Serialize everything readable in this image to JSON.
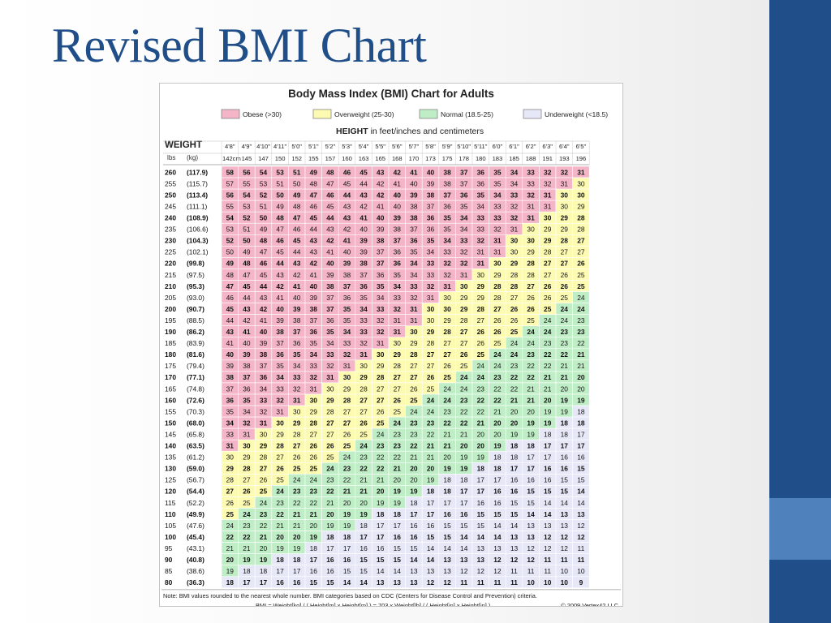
{
  "slide": {
    "title": "Revised BMI Chart"
  },
  "colors": {
    "obese": "#f5b5c8",
    "overweight": "#fdfbb1",
    "normal": "#bfeec6",
    "underweight": "#e6e8f7",
    "accent": "#1f4e89",
    "accent_light": "#4f81bd"
  },
  "chart_data": {
    "type": "table",
    "title": "Body Mass Index (BMI) Chart for Adults",
    "legend": [
      {
        "label": "Obese (>30)",
        "color": "#f5b5c8"
      },
      {
        "label": "Overweight (25-30)",
        "color": "#fdfbb1"
      },
      {
        "label": "Normal (18.5-25)",
        "color": "#bfeec6"
      },
      {
        "label": "Underweight (<18.5)",
        "color": "#e6e8f7"
      }
    ],
    "height_label_bold": "HEIGHT",
    "height_label_rest": " in feet/inches and centimeters",
    "weight_label": "WEIGHT",
    "lbs_label": "lbs",
    "kg_label": "(kg)",
    "heights_ftin": [
      "4'8\"",
      "4'9\"",
      "4'10\"",
      "4'11\"",
      "5'0\"",
      "5'1\"",
      "5'2\"",
      "5'3\"",
      "5'4\"",
      "5'5\"",
      "5'6\"",
      "5'7\"",
      "5'8\"",
      "5'9\"",
      "5'10\"",
      "5'11\"",
      "6'0\"",
      "6'1\"",
      "6'2\"",
      "6'3\"",
      "6'4\"",
      "6'5\""
    ],
    "heights_cm": [
      "142cm",
      "145",
      "147",
      "150",
      "152",
      "155",
      "157",
      "160",
      "163",
      "165",
      "168",
      "170",
      "173",
      "175",
      "178",
      "180",
      "183",
      "185",
      "188",
      "191",
      "193",
      "196"
    ],
    "rows": [
      {
        "lbs": "260",
        "kg": "(117.9)",
        "bmi": [
          58,
          56,
          54,
          53,
          51,
          49,
          48,
          46,
          45,
          43,
          42,
          41,
          40,
          38,
          37,
          36,
          35,
          34,
          33,
          32,
          32,
          31
        ]
      },
      {
        "lbs": "255",
        "kg": "(115.7)",
        "bmi": [
          57,
          55,
          53,
          51,
          50,
          48,
          47,
          45,
          44,
          42,
          41,
          40,
          39,
          38,
          37,
          36,
          35,
          34,
          33,
          32,
          31,
          30
        ]
      },
      {
        "lbs": "250",
        "kg": "(113.4)",
        "bmi": [
          56,
          54,
          52,
          50,
          49,
          47,
          46,
          44,
          43,
          42,
          40,
          39,
          38,
          37,
          36,
          35,
          34,
          33,
          32,
          31,
          30,
          30
        ]
      },
      {
        "lbs": "245",
        "kg": "(111.1)",
        "bmi": [
          55,
          53,
          51,
          49,
          48,
          46,
          45,
          43,
          42,
          41,
          40,
          38,
          37,
          36,
          35,
          34,
          33,
          32,
          31,
          31,
          30,
          29
        ]
      },
      {
        "lbs": "240",
        "kg": "(108.9)",
        "bmi": [
          54,
          52,
          50,
          48,
          47,
          45,
          44,
          43,
          41,
          40,
          39,
          38,
          36,
          35,
          34,
          33,
          33,
          32,
          31,
          30,
          29,
          28
        ]
      },
      {
        "lbs": "235",
        "kg": "(106.6)",
        "bmi": [
          53,
          51,
          49,
          47,
          46,
          44,
          43,
          42,
          40,
          39,
          38,
          37,
          36,
          35,
          34,
          33,
          32,
          31,
          30,
          29,
          29,
          28
        ]
      },
      {
        "lbs": "230",
        "kg": "(104.3)",
        "bmi": [
          52,
          50,
          48,
          46,
          45,
          43,
          42,
          41,
          39,
          38,
          37,
          36,
          35,
          34,
          33,
          32,
          31,
          30,
          30,
          29,
          28,
          27
        ]
      },
      {
        "lbs": "225",
        "kg": "(102.1)",
        "bmi": [
          50,
          49,
          47,
          45,
          44,
          43,
          41,
          40,
          39,
          37,
          36,
          35,
          34,
          33,
          32,
          31,
          31,
          30,
          29,
          28,
          27,
          27
        ]
      },
      {
        "lbs": "220",
        "kg": "(99.8)",
        "bmi": [
          49,
          48,
          46,
          44,
          43,
          42,
          40,
          39,
          38,
          37,
          36,
          34,
          33,
          32,
          32,
          31,
          30,
          29,
          28,
          27,
          27,
          26
        ]
      },
      {
        "lbs": "215",
        "kg": "(97.5)",
        "bmi": [
          48,
          47,
          45,
          43,
          42,
          41,
          39,
          38,
          37,
          36,
          35,
          34,
          33,
          32,
          31,
          30,
          29,
          28,
          28,
          27,
          26,
          25
        ]
      },
      {
        "lbs": "210",
        "kg": "(95.3)",
        "bmi": [
          47,
          45,
          44,
          42,
          41,
          40,
          38,
          37,
          36,
          35,
          34,
          33,
          32,
          31,
          30,
          29,
          28,
          28,
          27,
          26,
          26,
          25
        ]
      },
      {
        "lbs": "205",
        "kg": "(93.0)",
        "bmi": [
          46,
          44,
          43,
          41,
          40,
          39,
          37,
          36,
          35,
          34,
          33,
          32,
          31,
          30,
          29,
          29,
          28,
          27,
          26,
          26,
          25,
          24
        ]
      },
      {
        "lbs": "200",
        "kg": "(90.7)",
        "bmi": [
          45,
          43,
          42,
          40,
          39,
          38,
          37,
          35,
          34,
          33,
          32,
          31,
          30,
          30,
          29,
          28,
          27,
          26,
          26,
          25,
          24,
          24
        ]
      },
      {
        "lbs": "195",
        "kg": "(88.5)",
        "bmi": [
          44,
          42,
          41,
          39,
          38,
          37,
          36,
          35,
          33,
          32,
          31,
          31,
          30,
          29,
          28,
          27,
          26,
          26,
          25,
          24,
          24,
          23
        ]
      },
      {
        "lbs": "190",
        "kg": "(86.2)",
        "bmi": [
          43,
          41,
          40,
          38,
          37,
          36,
          35,
          34,
          33,
          32,
          31,
          30,
          29,
          28,
          27,
          26,
          26,
          25,
          24,
          24,
          23,
          23
        ]
      },
      {
        "lbs": "185",
        "kg": "(83.9)",
        "bmi": [
          41,
          40,
          39,
          37,
          36,
          35,
          34,
          33,
          32,
          31,
          30,
          29,
          28,
          27,
          27,
          26,
          25,
          24,
          24,
          23,
          23,
          22
        ]
      },
      {
        "lbs": "180",
        "kg": "(81.6)",
        "bmi": [
          40,
          39,
          38,
          36,
          35,
          34,
          33,
          32,
          31,
          30,
          29,
          28,
          27,
          27,
          26,
          25,
          24,
          24,
          23,
          22,
          22,
          21
        ]
      },
      {
        "lbs": "175",
        "kg": "(79.4)",
        "bmi": [
          39,
          38,
          37,
          35,
          34,
          33,
          32,
          31,
          30,
          29,
          28,
          27,
          27,
          26,
          25,
          24,
          24,
          23,
          22,
          22,
          21,
          21
        ]
      },
      {
        "lbs": "170",
        "kg": "(77.1)",
        "bmi": [
          38,
          37,
          36,
          34,
          33,
          32,
          31,
          30,
          29,
          28,
          27,
          27,
          26,
          25,
          24,
          24,
          23,
          22,
          22,
          21,
          21,
          20
        ]
      },
      {
        "lbs": "165",
        "kg": "(74.8)",
        "bmi": [
          37,
          36,
          34,
          33,
          32,
          31,
          30,
          29,
          28,
          27,
          27,
          26,
          25,
          24,
          24,
          23,
          22,
          22,
          21,
          21,
          20,
          20
        ]
      },
      {
        "lbs": "160",
        "kg": "(72.6)",
        "bmi": [
          36,
          35,
          33,
          32,
          31,
          30,
          29,
          28,
          27,
          27,
          26,
          25,
          24,
          24,
          23,
          22,
          22,
          21,
          21,
          20,
          19,
          19
        ]
      },
      {
        "lbs": "155",
        "kg": "(70.3)",
        "bmi": [
          35,
          34,
          32,
          31,
          30,
          29,
          28,
          27,
          27,
          26,
          25,
          24,
          24,
          23,
          22,
          22,
          21,
          20,
          20,
          19,
          19,
          18
        ]
      },
      {
        "lbs": "150",
        "kg": "(68.0)",
        "bmi": [
          34,
          32,
          31,
          30,
          29,
          28,
          27,
          27,
          26,
          25,
          24,
          23,
          23,
          22,
          22,
          21,
          20,
          20,
          19,
          19,
          18,
          18
        ]
      },
      {
        "lbs": "145",
        "kg": "(65.8)",
        "bmi": [
          33,
          31,
          30,
          29,
          28,
          27,
          27,
          26,
          25,
          24,
          23,
          23,
          22,
          21,
          21,
          20,
          20,
          19,
          19,
          18,
          18,
          17
        ]
      },
      {
        "lbs": "140",
        "kg": "(63.5)",
        "bmi": [
          31,
          30,
          29,
          28,
          27,
          26,
          26,
          25,
          24,
          23,
          23,
          22,
          21,
          21,
          20,
          20,
          19,
          18,
          18,
          17,
          17,
          17
        ]
      },
      {
        "lbs": "135",
        "kg": "(61.2)",
        "bmi": [
          30,
          29,
          28,
          27,
          26,
          26,
          25,
          24,
          23,
          22,
          22,
          21,
          21,
          20,
          19,
          19,
          18,
          18,
          17,
          17,
          16,
          16
        ]
      },
      {
        "lbs": "130",
        "kg": "(59.0)",
        "bmi": [
          29,
          28,
          27,
          26,
          25,
          25,
          24,
          23,
          22,
          22,
          21,
          20,
          20,
          19,
          19,
          18,
          18,
          17,
          17,
          16,
          16,
          15
        ]
      },
      {
        "lbs": "125",
        "kg": "(56.7)",
        "bmi": [
          28,
          27,
          26,
          25,
          24,
          24,
          23,
          22,
          21,
          21,
          20,
          20,
          19,
          18,
          18,
          17,
          17,
          16,
          16,
          16,
          15,
          15
        ]
      },
      {
        "lbs": "120",
        "kg": "(54.4)",
        "bmi": [
          27,
          26,
          25,
          24,
          23,
          23,
          22,
          21,
          21,
          20,
          19,
          19,
          18,
          18,
          17,
          17,
          16,
          16,
          15,
          15,
          15,
          14
        ]
      },
      {
        "lbs": "115",
        "kg": "(52.2)",
        "bmi": [
          26,
          25,
          24,
          23,
          22,
          22,
          21,
          20,
          20,
          19,
          19,
          18,
          17,
          17,
          17,
          16,
          16,
          15,
          15,
          14,
          14,
          14
        ]
      },
      {
        "lbs": "110",
        "kg": "(49.9)",
        "bmi": [
          25,
          24,
          23,
          22,
          21,
          21,
          20,
          19,
          19,
          18,
          18,
          17,
          17,
          16,
          16,
          15,
          15,
          15,
          14,
          14,
          13,
          13
        ]
      },
      {
        "lbs": "105",
        "kg": "(47.6)",
        "bmi": [
          24,
          23,
          22,
          21,
          21,
          20,
          19,
          19,
          18,
          17,
          17,
          16,
          16,
          15,
          15,
          15,
          14,
          14,
          13,
          13,
          13,
          12
        ]
      },
      {
        "lbs": "100",
        "kg": "(45.4)",
        "bmi": [
          22,
          22,
          21,
          20,
          20,
          19,
          18,
          18,
          17,
          17,
          16,
          16,
          15,
          15,
          14,
          14,
          14,
          13,
          13,
          12,
          12,
          12
        ]
      },
      {
        "lbs": "95",
        "kg": "(43.1)",
        "bmi": [
          21,
          21,
          20,
          19,
          19,
          18,
          17,
          17,
          16,
          16,
          15,
          15,
          14,
          14,
          14,
          13,
          13,
          13,
          12,
          12,
          12,
          11
        ]
      },
      {
        "lbs": "90",
        "kg": "(40.8)",
        "bmi": [
          20,
          19,
          19,
          18,
          18,
          17,
          16,
          16,
          15,
          15,
          15,
          14,
          14,
          13,
          13,
          13,
          12,
          12,
          12,
          11,
          11,
          11
        ]
      },
      {
        "lbs": "85",
        "kg": "(38.6)",
        "bmi": [
          19,
          18,
          18,
          17,
          17,
          16,
          16,
          15,
          15,
          14,
          14,
          13,
          13,
          13,
          12,
          12,
          12,
          11,
          11,
          11,
          10,
          10
        ]
      },
      {
        "lbs": "80",
        "kg": "(36.3)",
        "bmi": [
          18,
          17,
          17,
          16,
          16,
          15,
          15,
          14,
          14,
          13,
          13,
          13,
          12,
          12,
          11,
          11,
          11,
          11,
          10,
          10,
          10,
          9
        ]
      }
    ],
    "note": "Note: BMI values rounded to the nearest whole number. BMI categories based on CDC (Centers for Disease Control and Prevention) criteria.",
    "formula": "BMI = Weight[kg] / ( Height[m] x Height[m] ) = 703 x Weight[lb] / ( Height[in] x Height[in] )",
    "copyright": "© 2009 Vertex42 LLC"
  }
}
